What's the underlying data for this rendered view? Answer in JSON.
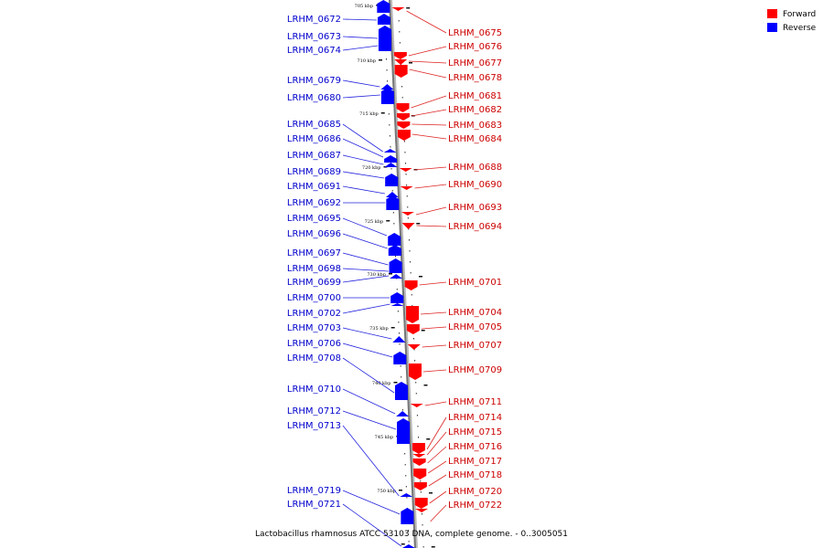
{
  "legend": [
    {
      "label": "Forward",
      "color": "#ff0000"
    },
    {
      "label": "Reverse",
      "color": "#0000ff"
    }
  ],
  "caption": "Lactobacillus rhamnosus ATCC 53103 DNA, complete genome. - 0..3005051",
  "ticks": [
    "705 kbp",
    "710 kbp",
    "715 kbp",
    "720 kbp",
    "725 kbp",
    "730 kbp",
    "735 kbp",
    "740 kbp",
    "745 kbp",
    "750 kbp"
  ],
  "reverse_genes": [
    "LRHM_0672",
    "LRHM_0673",
    "LRHM_0674",
    "LRHM_0679",
    "LRHM_0680",
    "LRHM_0685",
    "LRHM_0686",
    "LRHM_0687",
    "LRHM_0689",
    "LRHM_0691",
    "LRHM_0692",
    "LRHM_0695",
    "LRHM_0696",
    "LRHM_0697",
    "LRHM_0698",
    "LRHM_0699",
    "LRHM_0700",
    "LRHM_0702",
    "LRHM_0703",
    "LRHM_0706",
    "LRHM_0708",
    "LRHM_0710",
    "LRHM_0712",
    "LRHM_0713",
    "LRHM_0719",
    "LRHM_0721"
  ],
  "forward_genes": [
    "LRHM_0675",
    "LRHM_0676",
    "LRHM_0677",
    "LRHM_0678",
    "LRHM_0681",
    "LRHM_0682",
    "LRHM_0683",
    "LRHM_0684",
    "LRHM_0688",
    "LRHM_0690",
    "LRHM_0693",
    "LRHM_0694",
    "LRHM_0701",
    "LRHM_0704",
    "LRHM_0705",
    "LRHM_0707",
    "LRHM_0709",
    "LRHM_0711",
    "LRHM_0714",
    "LRHM_0715",
    "LRHM_0716",
    "LRHM_0717",
    "LRHM_0718",
    "LRHM_0720",
    "LRHM_0722"
  ]
}
